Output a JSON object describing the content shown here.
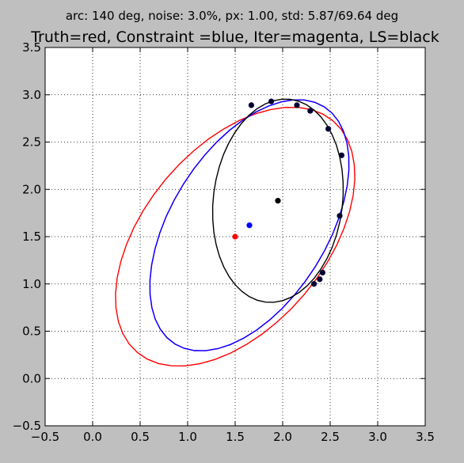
{
  "chart_data": {
    "type": "scatter",
    "suptitle": "arc: 140 deg, noise: 3.0%, px: 1.00, std: 5.87/69.64 deg",
    "title": "Truth=red, Constraint =blue, Iter=magenta, LS=black",
    "xlabel": "",
    "ylabel": "",
    "xlim": [
      -0.5,
      3.5
    ],
    "ylim": [
      -0.5,
      3.5
    ],
    "xticks": [
      -0.5,
      0.0,
      0.5,
      1.0,
      1.5,
      2.0,
      2.5,
      3.0,
      3.5
    ],
    "yticks": [
      -0.5,
      0.0,
      0.5,
      1.0,
      1.5,
      2.0,
      2.5,
      3.0,
      3.5
    ],
    "xtick_labels": [
      "−0.5",
      "0.0",
      "0.5",
      "1.0",
      "1.5",
      "2.0",
      "2.5",
      "3.0",
      "3.5"
    ],
    "ytick_labels": [
      "−0.5",
      "0.0",
      "0.5",
      "1.0",
      "1.5",
      "2.0",
      "2.5",
      "3.0",
      "3.5"
    ],
    "grid": true,
    "ellipses": [
      {
        "name": "Truth",
        "color": "#ff0000",
        "center": [
          1.5,
          1.5
        ],
        "a": 1.6,
        "b": 0.95,
        "angle_deg": 50
      },
      {
        "name": "Iter",
        "color": "#ff00ff",
        "center": [
          1.65,
          1.62
        ],
        "a": 1.48,
        "b": 0.82,
        "angle_deg": 58
      },
      {
        "name": "Constraint",
        "color": "#0000ff",
        "center": [
          1.65,
          1.62
        ],
        "a": 1.48,
        "b": 0.82,
        "angle_deg": 58
      },
      {
        "name": "LS",
        "color": "#000000",
        "center": [
          1.95,
          1.88
        ],
        "a": 1.08,
        "b": 0.68,
        "angle_deg": 83
      }
    ],
    "centers": [
      {
        "name": "Truth",
        "color": "#ff0000",
        "x": 1.5,
        "y": 1.5
      },
      {
        "name": "Constraint",
        "color": "#0000ff",
        "x": 1.65,
        "y": 1.62
      },
      {
        "name": "LS",
        "color": "#000000",
        "x": 1.95,
        "y": 1.88
      }
    ],
    "data_points": [
      {
        "x": 1.67,
        "y": 2.89
      },
      {
        "x": 1.88,
        "y": 2.93
      },
      {
        "x": 2.15,
        "y": 2.89
      },
      {
        "x": 2.29,
        "y": 2.83
      },
      {
        "x": 2.48,
        "y": 2.64
      },
      {
        "x": 2.62,
        "y": 2.36
      },
      {
        "x": 2.6,
        "y": 1.72
      },
      {
        "x": 2.42,
        "y": 1.12
      },
      {
        "x": 2.39,
        "y": 1.05
      },
      {
        "x": 2.33,
        "y": 1.0
      }
    ],
    "data_point_color": "#000033"
  }
}
